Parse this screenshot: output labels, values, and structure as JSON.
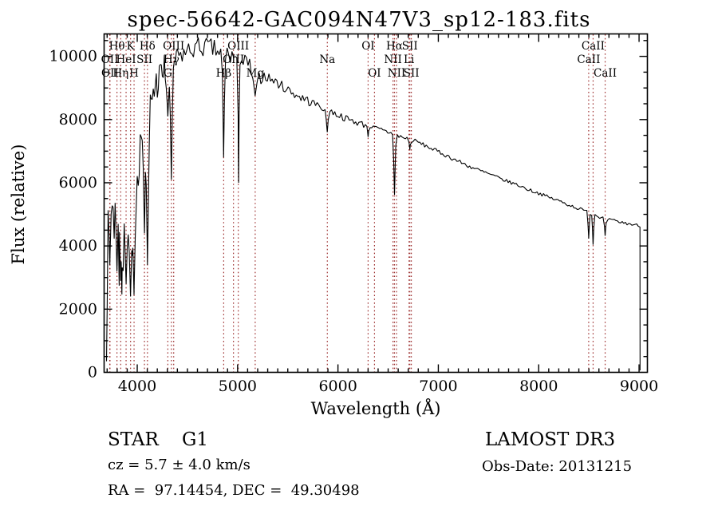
{
  "title": "spec-56642-GAC094N47V3_sp12-183.fits",
  "axes": {
    "xlabel": "Wavelength (Å)",
    "ylabel": "Flux (relative)",
    "x_major_ticks": [
      4000,
      5000,
      6000,
      7000,
      8000,
      9000
    ],
    "y_major_ticks": [
      0,
      2000,
      4000,
      6000,
      8000,
      10000
    ],
    "x_minor_step": 100,
    "y_minor_step": 500,
    "xlim": [
      3670,
      9083
    ],
    "ylim": [
      0,
      10710
    ]
  },
  "footer": {
    "class_label": "STAR    G1",
    "cz": "cz = 5.7 ± 4.0 km/s",
    "radec": "RA =  97.14454, DEC =  49.30498",
    "survey": "LAMOST DR3",
    "obs_date": "Obs-Date: 20131215"
  },
  "chart_data": {
    "type": "line",
    "title": "spec-56642-GAC094N47V3_sp12-183.fits",
    "xlabel": "Wavelength (Å)",
    "ylabel": "Flux (relative)",
    "xlim": [
      3670,
      9083
    ],
    "ylim": [
      0,
      10710
    ],
    "grid": false,
    "line_color": "#000000",
    "marker_line_color": "#9e3030",
    "description": "LAMOST DR3 stellar spectrum (type STAR G1): noisy blue end ~3700-4100 A with flux bouncing 2400-7500, rising to a broad maximum ~10300 near 4600-5000 A, then a nearly linear decline to ~4600 at 9000 A where the spectrum cuts off; deep Balmer and CaII absorption features marked by dotted red lines.",
    "envelope_points": [
      [
        3695,
        5200
      ],
      [
        3720,
        5600
      ],
      [
        3760,
        5900
      ],
      [
        3800,
        6100
      ],
      [
        3840,
        5400
      ],
      [
        3880,
        5100
      ],
      [
        3920,
        4800
      ],
      [
        3960,
        5200
      ],
      [
        4000,
        6200
      ],
      [
        4040,
        7200
      ],
      [
        4080,
        7900
      ],
      [
        4120,
        8300
      ],
      [
        4160,
        8900
      ],
      [
        4200,
        9200
      ],
      [
        4260,
        9500
      ],
      [
        4320,
        9700
      ],
      [
        4380,
        9900
      ],
      [
        4440,
        10050
      ],
      [
        4500,
        10150
      ],
      [
        4560,
        10250
      ],
      [
        4620,
        10300
      ],
      [
        4680,
        10300
      ],
      [
        4740,
        10250
      ],
      [
        4800,
        10150
      ],
      [
        4861,
        10050
      ],
      [
        4920,
        10050
      ],
      [
        4980,
        9950
      ],
      [
        5040,
        9850
      ],
      [
        5100,
        9700
      ],
      [
        5175,
        9500
      ],
      [
        5240,
        9450
      ],
      [
        5320,
        9300
      ],
      [
        5400,
        9150
      ],
      [
        5500,
        8950
      ],
      [
        5600,
        8750
      ],
      [
        5700,
        8600
      ],
      [
        5800,
        8450
      ],
      [
        5900,
        8300
      ],
      [
        6000,
        8150
      ],
      [
        6100,
        8000
      ],
      [
        6200,
        7900
      ],
      [
        6300,
        7800
      ],
      [
        6400,
        7700
      ],
      [
        6500,
        7600
      ],
      [
        6600,
        7480
      ],
      [
        6700,
        7380
      ],
      [
        6800,
        7280
      ],
      [
        6900,
        7130
      ],
      [
        7000,
        6980
      ],
      [
        7100,
        6830
      ],
      [
        7200,
        6680
      ],
      [
        7300,
        6530
      ],
      [
        7400,
        6400
      ],
      [
        7500,
        6280
      ],
      [
        7600,
        6150
      ],
      [
        7700,
        6030
      ],
      [
        7800,
        5920
      ],
      [
        7900,
        5780
      ],
      [
        8000,
        5670
      ],
      [
        8100,
        5540
      ],
      [
        8200,
        5430
      ],
      [
        8300,
        5300
      ],
      [
        8400,
        5180
      ],
      [
        8500,
        5060
      ],
      [
        8600,
        4930
      ],
      [
        8700,
        4830
      ],
      [
        8800,
        4760
      ],
      [
        8900,
        4700
      ],
      [
        9000,
        4640
      ],
      [
        9010,
        4620
      ]
    ],
    "noise_regions": [
      [
        3690,
        3980,
        1350
      ],
      [
        3980,
        4150,
        800
      ],
      [
        4150,
        4400,
        600
      ],
      [
        4400,
        5250,
        330
      ],
      [
        5250,
        5750,
        160
      ],
      [
        5750,
        6300,
        110
      ],
      [
        6300,
        6800,
        80
      ],
      [
        6800,
        7600,
        65
      ],
      [
        7600,
        9010,
        55
      ]
    ],
    "absorption_dips": [
      [
        3727,
        3400,
        10
      ],
      [
        3798,
        3200,
        12
      ],
      [
        3835,
        2900,
        12
      ],
      [
        3889,
        2800,
        12
      ],
      [
        3933,
        2400,
        12
      ],
      [
        3968,
        2450,
        12
      ],
      [
        4072,
        4400,
        10
      ],
      [
        4102,
        3400,
        12
      ],
      [
        4305,
        8100,
        14
      ],
      [
        4340,
        6100,
        10
      ],
      [
        4861,
        6800,
        8
      ],
      [
        5010,
        6000,
        5
      ],
      [
        5175,
        8750,
        18
      ],
      [
        5893,
        7600,
        10
      ],
      [
        6300,
        7450,
        6
      ],
      [
        6563,
        5620,
        8
      ],
      [
        6716,
        7050,
        6
      ],
      [
        8498,
        4230,
        7
      ],
      [
        8542,
        4040,
        7
      ],
      [
        8662,
        4320,
        7
      ]
    ],
    "spectral_lines": [
      {
        "name": "OII",
        "wl": 3726.0,
        "row": 2
      },
      {
        "name": "OII",
        "wl": 3728.8,
        "row": 3
      },
      {
        "name": "Hθ",
        "wl": 3798.0,
        "row": 1
      },
      {
        "name": "Hη",
        "wl": 3835.4,
        "row": 3
      },
      {
        "name": "HeI",
        "wl": 3889.0,
        "row": 2
      },
      {
        "name": "K",
        "wl": 3933.7,
        "row": 1
      },
      {
        "name": "H",
        "wl": 3968.5,
        "row": 3
      },
      {
        "name": "SII",
        "wl": 4072.0,
        "row": 2
      },
      {
        "name": "Hδ",
        "wl": 4101.7,
        "row": 1
      },
      {
        "name": "G",
        "wl": 4305.0,
        "row": 3
      },
      {
        "name": "Hγ",
        "wl": 4340.5,
        "row": 2
      },
      {
        "name": "OIII",
        "wl": 4363.2,
        "row": 1
      },
      {
        "name": "Hβ",
        "wl": 4861.3,
        "row": 3
      },
      {
        "name": "OIII",
        "wl": 4958.9,
        "row": 2
      },
      {
        "name": "OIII",
        "wl": 5006.8,
        "row": 1
      },
      {
        "name": "Mg",
        "wl": 5175.3,
        "row": 3
      },
      {
        "name": "Na",
        "wl": 5893.9,
        "row": 2
      },
      {
        "name": "OI",
        "wl": 6300.3,
        "row": 1
      },
      {
        "name": "OI",
        "wl": 6363.8,
        "row": 3
      },
      {
        "name": "NII",
        "wl": 6548.0,
        "row": 2
      },
      {
        "name": "Hα",
        "wl": 6562.8,
        "row": 1
      },
      {
        "name": "NII",
        "wl": 6583.4,
        "row": 3
      },
      {
        "name": "Li",
        "wl": 6707.9,
        "row": 2
      },
      {
        "name": "SII",
        "wl": 6716.4,
        "row": 1
      },
      {
        "name": "SII",
        "wl": 6730.8,
        "row": 3
      },
      {
        "name": "CaII",
        "wl": 8498.0,
        "row": 2
      },
      {
        "name": "CaII",
        "wl": 8542.1,
        "row": 1
      },
      {
        "name": "CaII",
        "wl": 8662.1,
        "row": 3
      }
    ],
    "spectrum_start": [
      3694,
      350
    ],
    "spectrum_end": [
      9010,
      60
    ]
  }
}
